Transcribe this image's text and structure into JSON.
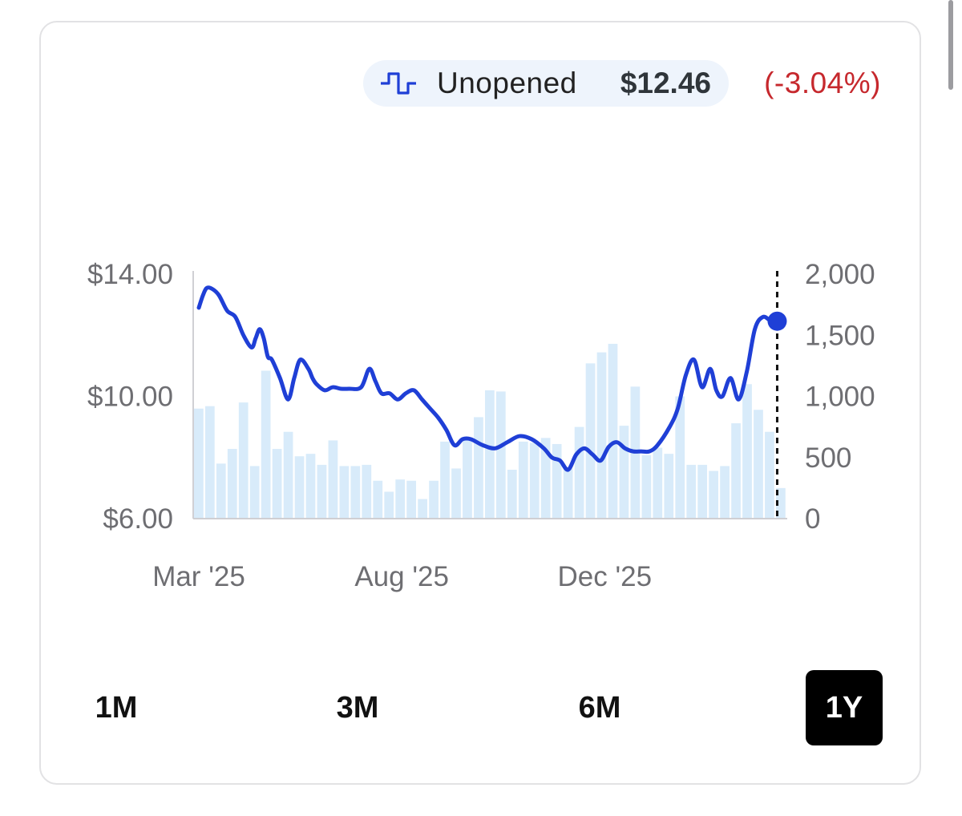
{
  "legend": {
    "icon": "sealed-product-icon",
    "label": "Unopened",
    "price": "$12.46",
    "change": "(-3.04%)",
    "change_color": "#c6282d"
  },
  "ranges": [
    {
      "label": "1M",
      "active": false
    },
    {
      "label": "3M",
      "active": false
    },
    {
      "label": "6M",
      "active": false
    },
    {
      "label": "1Y",
      "active": true
    }
  ],
  "chart_data": {
    "type": "line",
    "title": "",
    "xlabel": "",
    "ylabel": "",
    "x_ticks": [
      {
        "label": "Mar '25",
        "x": 0
      },
      {
        "label": "Aug '25",
        "x": 5
      },
      {
        "label": "Dec '25",
        "x": 10
      }
    ],
    "x_range": [
      0,
      14.3
    ],
    "y_left": {
      "ticks": [
        "$14.00",
        "$10.00",
        "$6.00"
      ],
      "min": 6,
      "max": 14
    },
    "y_right": {
      "ticks": [
        "2,000",
        "1,500",
        "1,000",
        "500",
        "0"
      ],
      "min": 0,
      "max": 2000
    },
    "grid": false,
    "price_color": "#1f3fd6",
    "volume_color": "#d8ebfa",
    "series": [
      {
        "axis": "left",
        "x": [
          0,
          0.1,
          0.2,
          0.35,
          0.5,
          0.7,
          0.9,
          1.1,
          1.3,
          1.4,
          1.5,
          1.6,
          1.7,
          1.8,
          2.0,
          2.2,
          2.35,
          2.5,
          2.7,
          2.8,
          2.9,
          3.1,
          3.3,
          3.5,
          3.7,
          4.0,
          4.2,
          4.35,
          4.5,
          4.7,
          4.9,
          5.1,
          5.3,
          5.5,
          5.7,
          5.9,
          6.1,
          6.3,
          6.5,
          6.7,
          7.0,
          7.3,
          7.6,
          7.9,
          8.2,
          8.5,
          8.7,
          8.9,
          9.1,
          9.3,
          9.5,
          9.7,
          9.9,
          10.1,
          10.3,
          10.5,
          10.7,
          10.9,
          11.1,
          11.3,
          11.6,
          11.8,
          12.0,
          12.2,
          12.4,
          12.6,
          12.75,
          12.9,
          13.1,
          13.3,
          13.5,
          13.7,
          13.9,
          14.1,
          14.25
        ],
        "values": [
          12.9,
          13.3,
          13.55,
          13.5,
          13.3,
          12.8,
          12.6,
          12.0,
          11.6,
          11.9,
          12.2,
          11.9,
          11.3,
          11.2,
          10.6,
          9.9,
          10.6,
          11.2,
          10.9,
          10.6,
          10.4,
          10.2,
          10.3,
          10.25,
          10.25,
          10.3,
          10.9,
          10.5,
          10.1,
          10.1,
          9.9,
          10.1,
          10.2,
          9.9,
          9.6,
          9.3,
          8.9,
          8.4,
          8.6,
          8.6,
          8.4,
          8.3,
          8.5,
          8.7,
          8.6,
          8.3,
          8.0,
          7.9,
          7.6,
          8.1,
          8.3,
          8.1,
          7.9,
          8.35,
          8.5,
          8.3,
          8.2,
          8.2,
          8.2,
          8.4,
          9.0,
          9.6,
          10.7,
          11.2,
          10.3,
          10.9,
          10.2,
          10.0,
          10.6,
          9.9,
          10.8,
          12.2,
          12.6,
          12.46,
          12.46
        ]
      },
      {
        "axis": "right",
        "type": "bar",
        "values": [
          900,
          920,
          450,
          570,
          950,
          430,
          1210,
          570,
          710,
          510,
          530,
          440,
          640,
          430,
          430,
          440,
          310,
          220,
          320,
          310,
          160,
          310,
          630,
          410,
          650,
          830,
          1050,
          1040,
          400,
          630,
          620,
          660,
          610,
          410,
          750,
          1270,
          1360,
          1430,
          760,
          1080,
          520,
          580,
          530,
          1000,
          440,
          440,
          390,
          430,
          780,
          1100,
          890,
          710,
          250
        ]
      }
    ],
    "marker": {
      "x": 14.25,
      "value": 12.46
    }
  }
}
